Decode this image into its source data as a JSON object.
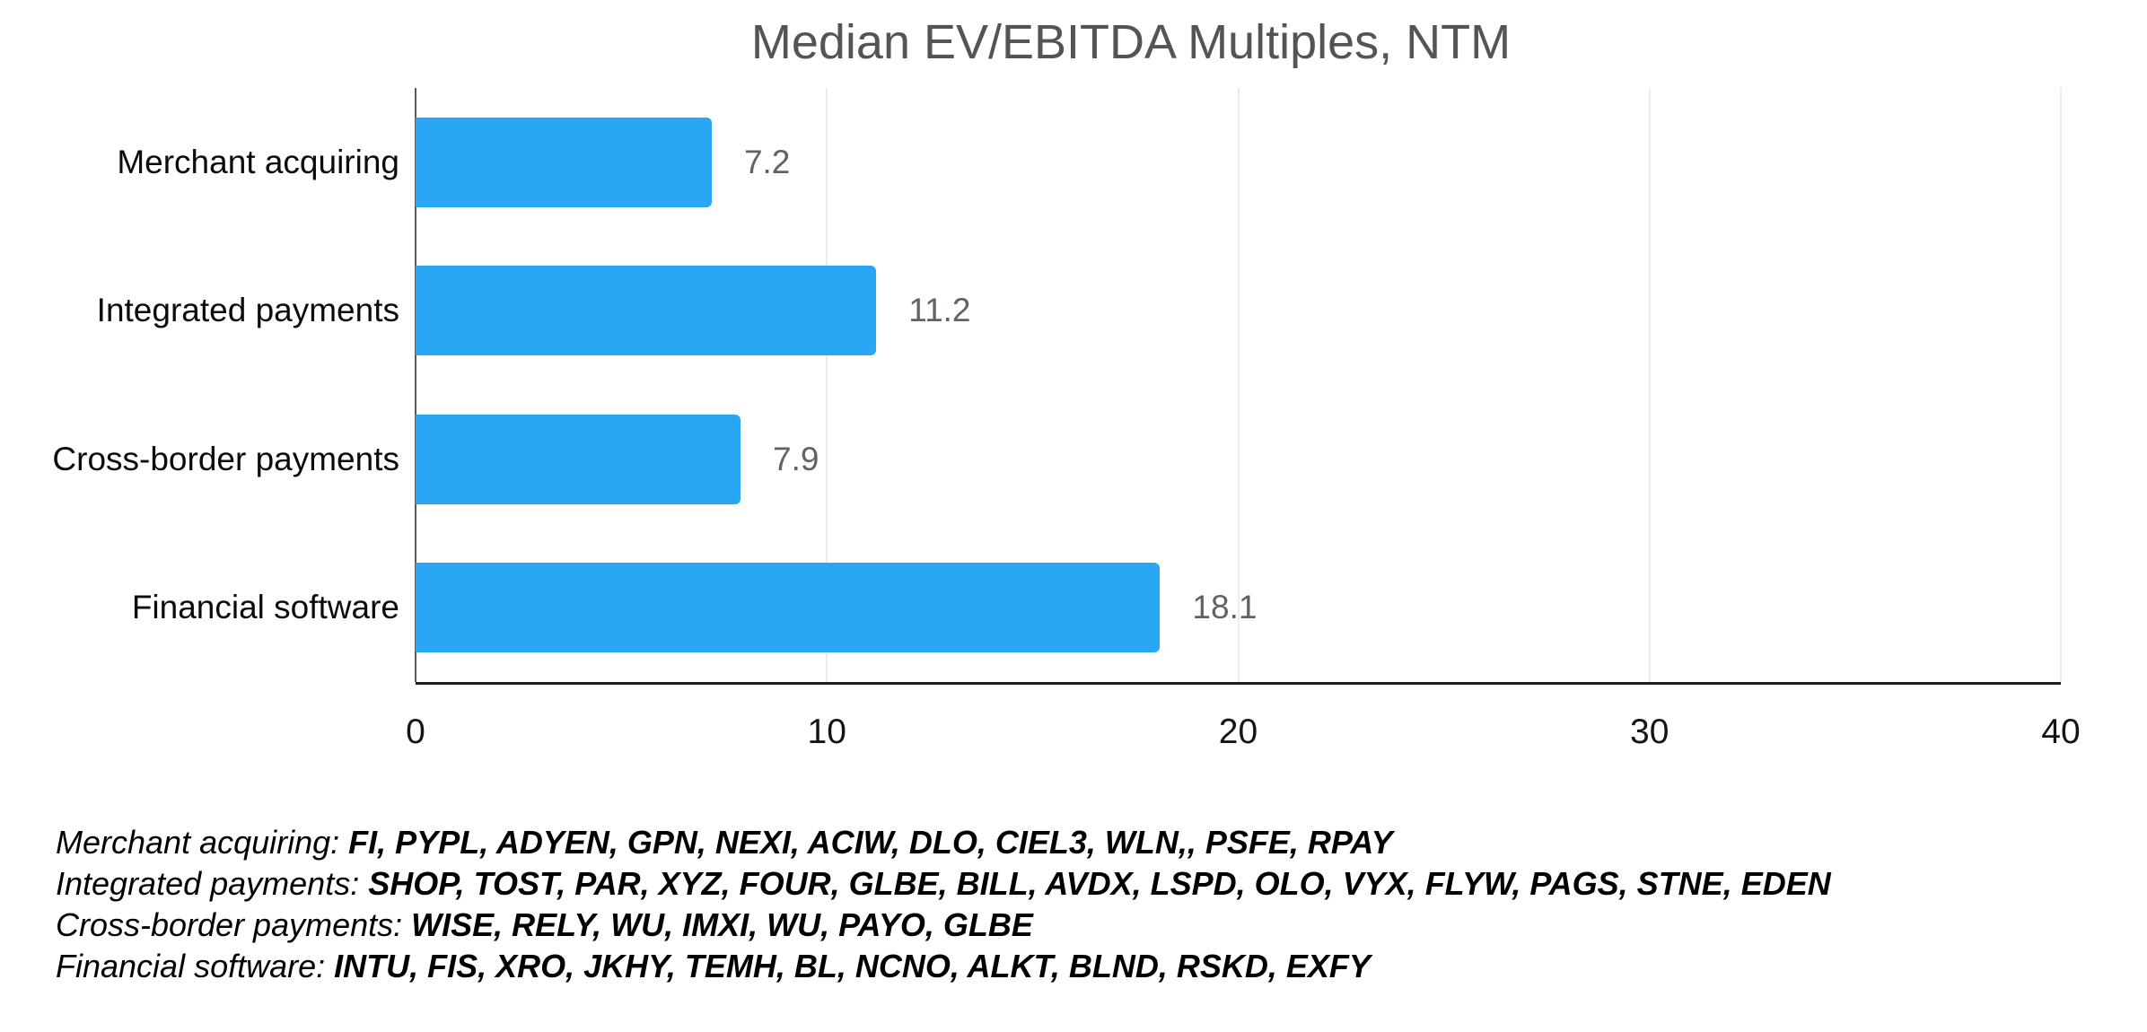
{
  "chart_data": {
    "type": "bar",
    "orientation": "horizontal",
    "title": "Median EV/EBITDA Multiples, NTM",
    "categories": [
      "Merchant acquiring",
      "Integrated payments",
      "Cross-border payments",
      "Financial software"
    ],
    "values": [
      7.2,
      11.2,
      7.9,
      18.1
    ],
    "value_labels": [
      "7.2",
      "11.2",
      "7.9",
      "18.1"
    ],
    "xlabel": "",
    "ylabel": "",
    "xlim": [
      0,
      40
    ],
    "xticks": [
      0,
      10,
      20,
      30,
      40
    ],
    "xtick_labels": [
      "0",
      "10",
      "20",
      "30",
      "40"
    ],
    "grid": true,
    "legend_position": "none",
    "bar_color": "#29a7f5"
  },
  "footnotes": [
    {
      "label": "Merchant acquiring:",
      "tickers": "FI, PYPL, ADYEN, GPN, NEXI, ACIW, DLO, CIEL3, WLN,, PSFE, RPAY"
    },
    {
      "label": "Integrated payments:",
      "tickers": "SHOP, TOST, PAR, XYZ, FOUR, GLBE, BILL, AVDX, LSPD, OLO, VYX, FLYW, PAGS, STNE, EDEN"
    },
    {
      "label": "Cross-border payments:",
      "tickers": "WISE, RELY, WU, IMXI, WU, PAYO, GLBE"
    },
    {
      "label": "Financial software:",
      "tickers": "INTU, FIS, XRO, JKHY, TEMH, BL, NCNO, ALKT, BLND, RSKD, EXFY"
    }
  ],
  "colors": {
    "bar": "#29a7f5",
    "title_text": "#545454",
    "value_label": "#5f6368",
    "category_label": "#0b0b0b",
    "gridline": "#ebebeb",
    "axis_line": "#1f1f1f",
    "background": "#ffffff"
  }
}
